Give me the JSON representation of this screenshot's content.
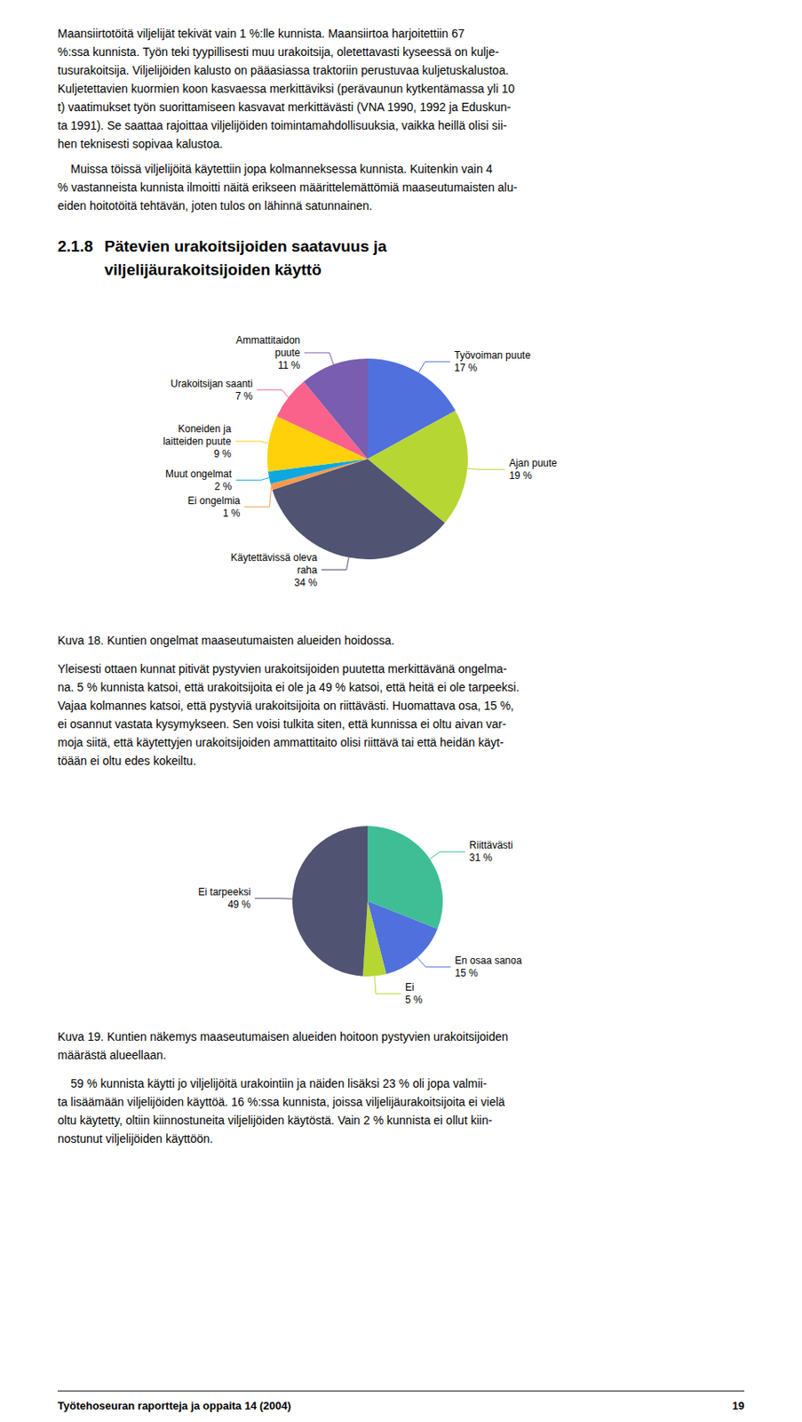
{
  "chart_data": [
    {
      "type": "pie",
      "annotations": [
        [
          "Maansiirtotöitä viljelijät tekivät vain 1 %:lle kunnista. Maansiirtoa harjoitettiin 67",
          "%:ssa kunnista. Työn teki tyypillisesti muu urakoitsija, oletettavasti kyseessä on kulje-",
          "tusurakoitsija. Viljelijöiden kalusto on pääasiassa traktoriin perustuvaa kuljetuskalustoa.",
          "Kuljetettavien kuormien koon kasvaessa merkittäviksi (perävaunun kytkentämassa yli 10",
          "t) vaatimukset työn suorittamiseen kasvavat merkittävästi (VNA 1990, 1992 ja Eduskun-",
          "ta 1991). Se saattaa rajoittaa viljelijöiden toimintamahdollisuuksia, vaikka heillä olisi sii-",
          "hen teknisesti sopivaa kalustoa."
        ],
        [
          "    Muissa töissä viljelijöitä käytettiin jopa kolmanneksessa kunnista. Kuitenkin vain 4",
          "% vastanneista kunnista ilmoitti näitä erikseen määrittelemättömiä maaseutumaisten alu-",
          "eiden hoitotöitä tehtävän, joten tulos on lähinnä satunnainen."
        ]
      ],
      "section": {
        "number": "2.1.8",
        "lines": [
          "Pätevien urakoitsijoiden saatavuus ja",
          "viljelijäurakoitsijoiden käyttö"
        ]
      },
      "title": "Kuva 18. Kuntien ongelmat maaseutumaisten alueiden hoidossa.",
      "categories": [
        "Työvoiman puute",
        "Ajan puute",
        "Käytettävissä oleva\nraha",
        "Ei ongelmia",
        "Muut ongelmat",
        "Koneiden ja\nlaitteiden puute",
        "Urakoitsijan saanti",
        "Ammattitaidon\npuute"
      ],
      "values": [
        17,
        19,
        34,
        1,
        2,
        9,
        7,
        11
      ],
      "value_labels": [
        "17 %",
        "19 %",
        "34 %",
        "1 %",
        "2 %",
        "9 %",
        "7 %",
        "11 %"
      ],
      "data_labels": true
    },
    {
      "type": "pie",
      "annotations": [
        [
          "Yleisesti ottaen kunnat pitivät pystyvien urakoitsijoiden puutetta merkittävänä ongelma-",
          "na. 5 % kunnista katsoi, että urakoitsijoita ei ole ja 49 % katsoi, että heitä ei ole tarpeeksi.",
          "Vajaa kolmannes katsoi, että pystyviä urakoitsijoita on riittävästi. Huomattava osa, 15 %,",
          "ei osannut vastata kysymykseen. Sen voisi tulkita siten, että kunnissa ei oltu aivan var-",
          "moja siitä, että käytettyjen urakoitsijoiden ammattitaito olisi riittävä tai että heidän käyt-",
          "töään ei oltu edes kokeiltu."
        ]
      ],
      "title": "Kuva 19. Kuntien näkemys maaseutumaisen alueiden hoitoon pystyvien urakoitsijoiden\nmäärästä alueellaan.",
      "categories": [
        "Riittävästi",
        "En osaa sanoa",
        "Ei",
        "Ei tarpeeksi"
      ],
      "values": [
        31,
        15,
        5,
        49
      ],
      "value_labels": [
        "31 %",
        "15 %",
        "5 %",
        "49 %"
      ],
      "data_labels": true
    }
  ],
  "annotations": [
    [
      "    59 % kunnista käytti jo viljelijöitä urakointiin ja näiden lisäksi 23 % oli jopa valmii-",
      "ta lisäämään viljelijöiden käyttöä. 16 %:ssa kunnista, joissa viljelijäurakoitsijoita ei vielä",
      "oltu käytetty, oltiin kiinnostuneita viljelijöiden käytöstä. Vain 2 % kunnista ei ollut kiin-",
      "nostunut viljelijöiden käyttöön."
    ]
  ],
  "footer": [
    "Työtehoseuran raportteja ja oppaita 14 (2004)",
    "19"
  ]
}
